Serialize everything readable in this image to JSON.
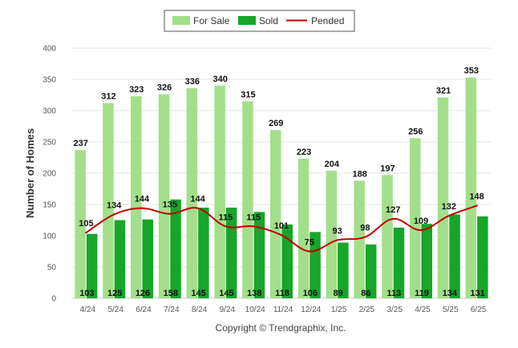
{
  "chart_data": {
    "type": "bar",
    "ylabel": "Number of Homes",
    "ylim": [
      0,
      400
    ],
    "yticks": [
      "0",
      "50",
      "100",
      "150",
      "200",
      "250",
      "300",
      "350",
      "400"
    ],
    "categories": [
      "4/24",
      "5/24",
      "6/24",
      "7/24",
      "8/24",
      "9/24",
      "10/24",
      "11/24",
      "12/24",
      "1/25",
      "2/25",
      "3/25",
      "4/25",
      "5/25",
      "6/25"
    ],
    "series": [
      {
        "name": "For Sale",
        "kind": "bar",
        "color": "#a3df8a",
        "values": [
          237,
          312,
          323,
          326,
          336,
          340,
          315,
          269,
          223,
          204,
          188,
          197,
          256,
          321,
          353
        ]
      },
      {
        "name": "Sold",
        "kind": "bar",
        "color": "#17a52a",
        "values": [
          103,
          125,
          126,
          158,
          145,
          145,
          138,
          118,
          106,
          89,
          86,
          113,
          119,
          134,
          131
        ]
      },
      {
        "name": "Pended",
        "kind": "line",
        "color": "#c00000",
        "values": [
          105,
          134,
          144,
          135,
          144,
          115,
          115,
          101,
          75,
          93,
          98,
          127,
          109,
          132,
          148
        ]
      }
    ],
    "legend_position": "top-center",
    "grid": true
  },
  "footer": {
    "copyright": "Copyright © Trendgraphix, Inc."
  }
}
